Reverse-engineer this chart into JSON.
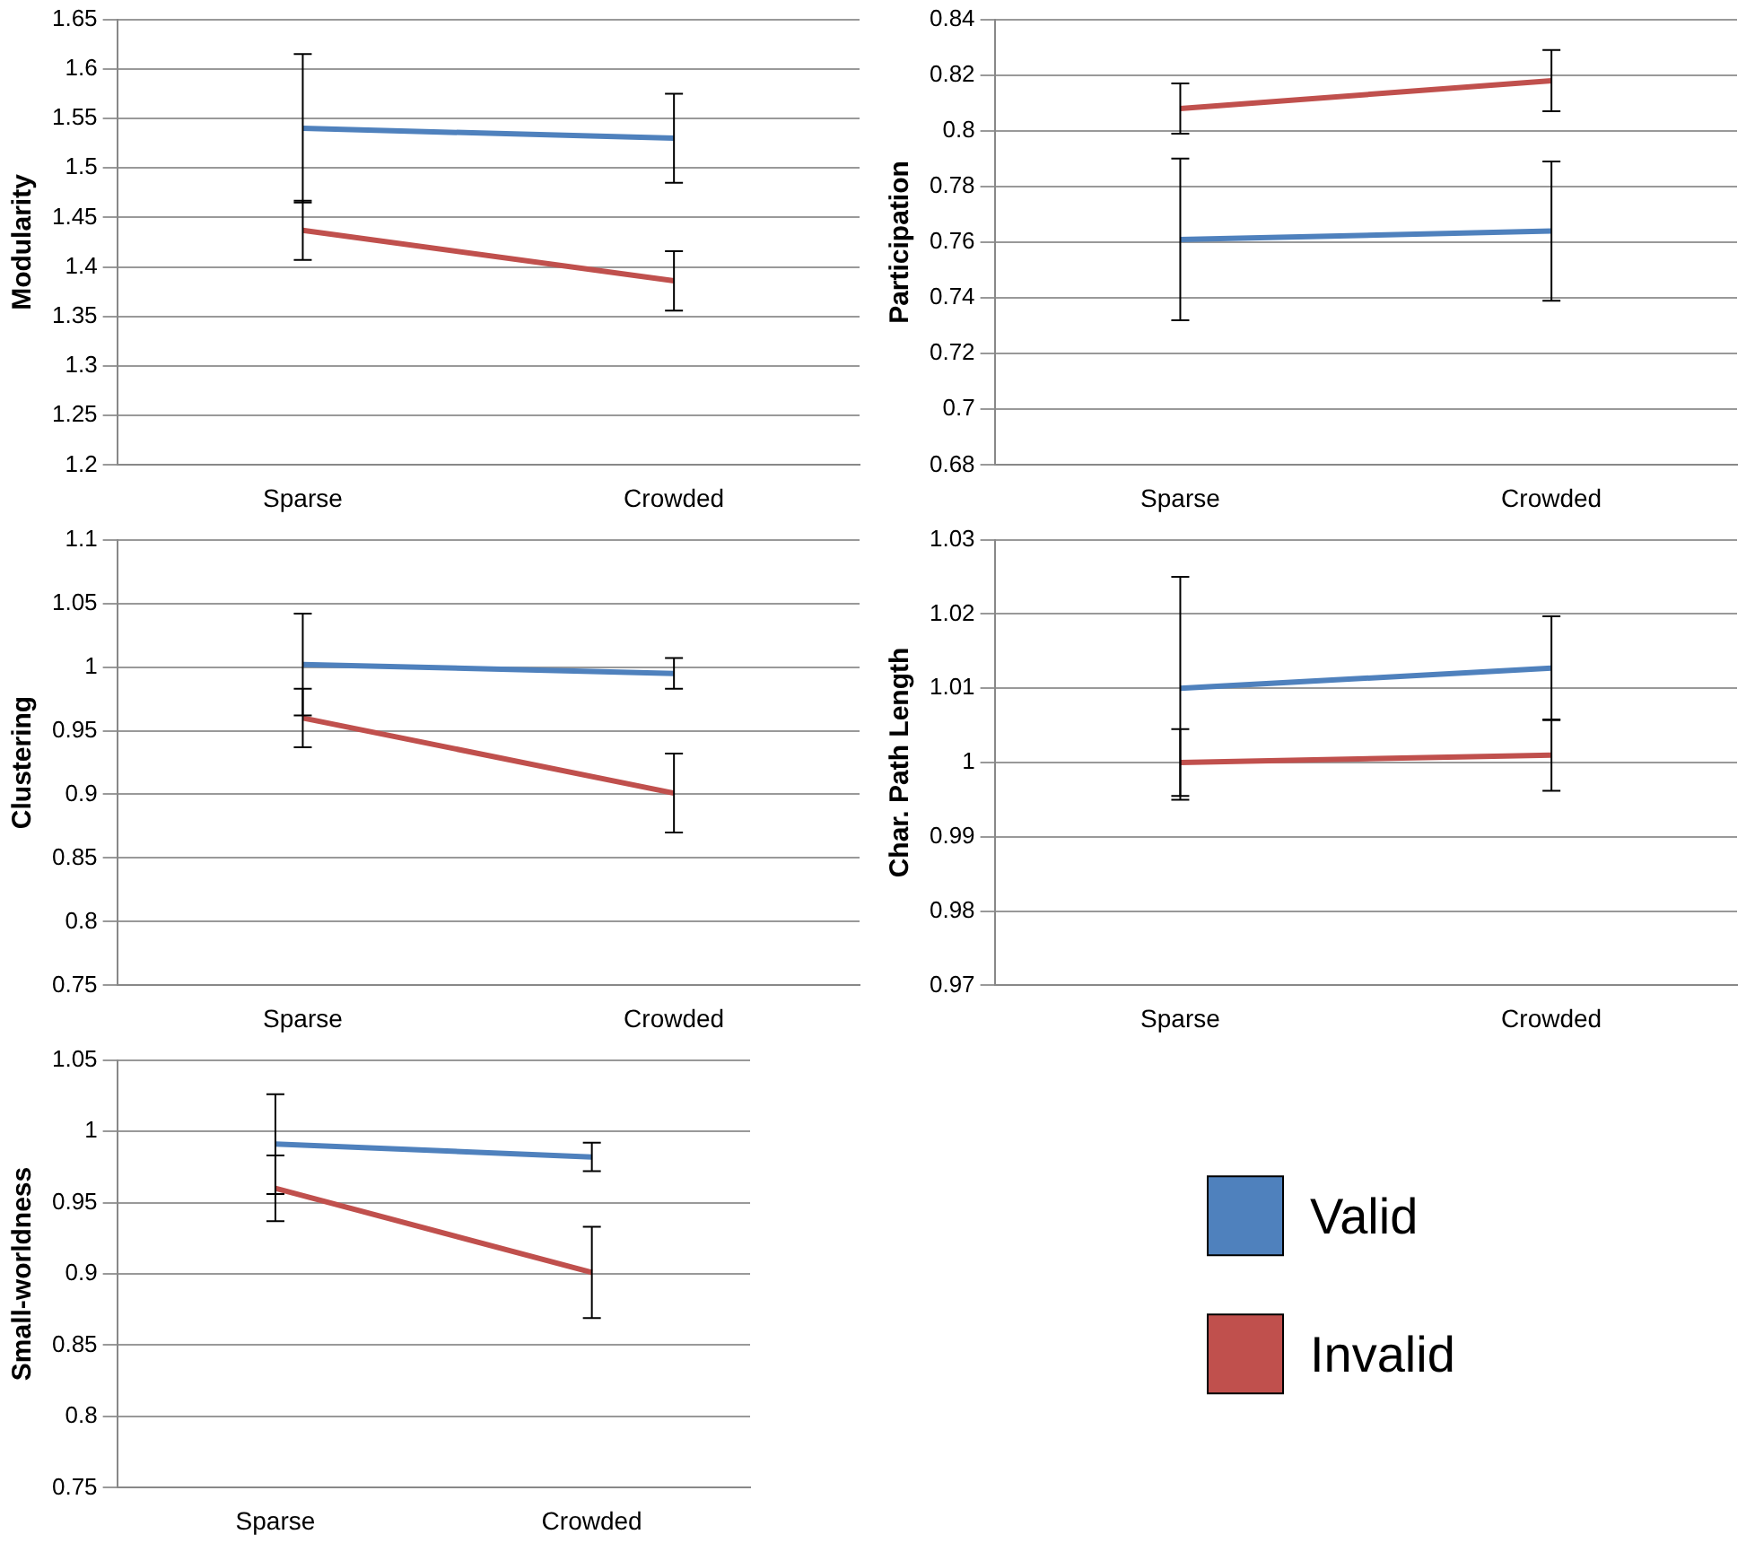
{
  "chart_data": [
    {
      "type": "line",
      "ylabel": "Modularity",
      "categories": [
        "Sparse",
        "Crowded"
      ],
      "ylim": [
        1.2,
        1.65
      ],
      "yticks": [
        1.2,
        1.25,
        1.3,
        1.35,
        1.4,
        1.45,
        1.5,
        1.55,
        1.6,
        1.65
      ],
      "grid": "y",
      "marker": "none",
      "series": [
        {
          "color": "#4f81bd",
          "values": [
            1.54,
            1.53
          ],
          "errors": [
            0.075,
            0.045
          ]
        },
        {
          "color": "#c0504d",
          "values": [
            1.437,
            1.386
          ],
          "errors": [
            0.03,
            0.03
          ]
        }
      ]
    },
    {
      "type": "line",
      "ylabel": "Participation",
      "categories": [
        "Sparse",
        "Crowded"
      ],
      "ylim": [
        0.68,
        0.84
      ],
      "yticks": [
        0.68,
        0.7,
        0.72,
        0.74,
        0.76,
        0.78,
        0.8,
        0.82,
        0.84
      ],
      "grid": "y",
      "marker": "none",
      "series": [
        {
          "color": "#4f81bd",
          "values": [
            0.761,
            0.764
          ],
          "errors": [
            0.029,
            0.025
          ]
        },
        {
          "color": "#c0504d",
          "values": [
            0.808,
            0.818
          ],
          "errors": [
            0.009,
            0.011
          ]
        }
      ]
    },
    {
      "type": "line",
      "ylabel": "Clustering",
      "categories": [
        "Sparse",
        "Crowded"
      ],
      "ylim": [
        0.75,
        1.1
      ],
      "yticks": [
        0.75,
        0.8,
        0.85,
        0.9,
        0.95,
        1,
        1.05,
        1.1
      ],
      "grid": "y",
      "marker": "none",
      "series": [
        {
          "color": "#4f81bd",
          "values": [
            1.002,
            0.995
          ],
          "errors": [
            0.04,
            0.012
          ]
        },
        {
          "color": "#c0504d",
          "values": [
            0.96,
            0.901
          ],
          "errors": [
            0.023,
            0.031
          ]
        }
      ]
    },
    {
      "type": "line",
      "ylabel": "Char. Path Length",
      "categories": [
        "Sparse",
        "Crowded"
      ],
      "ylim": [
        0.97,
        1.03
      ],
      "yticks": [
        0.97,
        0.98,
        0.99,
        1,
        1.01,
        1.02,
        1.03
      ],
      "grid": "y",
      "marker": "none",
      "series": [
        {
          "color": "#4f81bd",
          "values": [
            1.01,
            1.0127
          ],
          "errors": [
            0.015,
            0.007
          ]
        },
        {
          "color": "#c0504d",
          "values": [
            1.0,
            1.001
          ],
          "errors": [
            0.0045,
            0.0048
          ]
        }
      ]
    },
    {
      "type": "line",
      "ylabel": "Small-worldness",
      "categories": [
        "Sparse",
        "Crowded"
      ],
      "ylim": [
        0.75,
        1.05
      ],
      "yticks": [
        0.75,
        0.8,
        0.85,
        0.9,
        0.95,
        1,
        1.05
      ],
      "grid": "y",
      "legend": "right",
      "series": [
        {
          "name": "Valid",
          "color": "#4f81bd",
          "values": [
            0.991,
            0.982
          ],
          "errors": [
            0.035,
            0.01
          ]
        },
        {
          "name": "Invalid",
          "color": "#c0504d",
          "values": [
            0.96,
            0.901
          ],
          "errors": [
            0.023,
            0.032
          ]
        }
      ]
    }
  ]
}
